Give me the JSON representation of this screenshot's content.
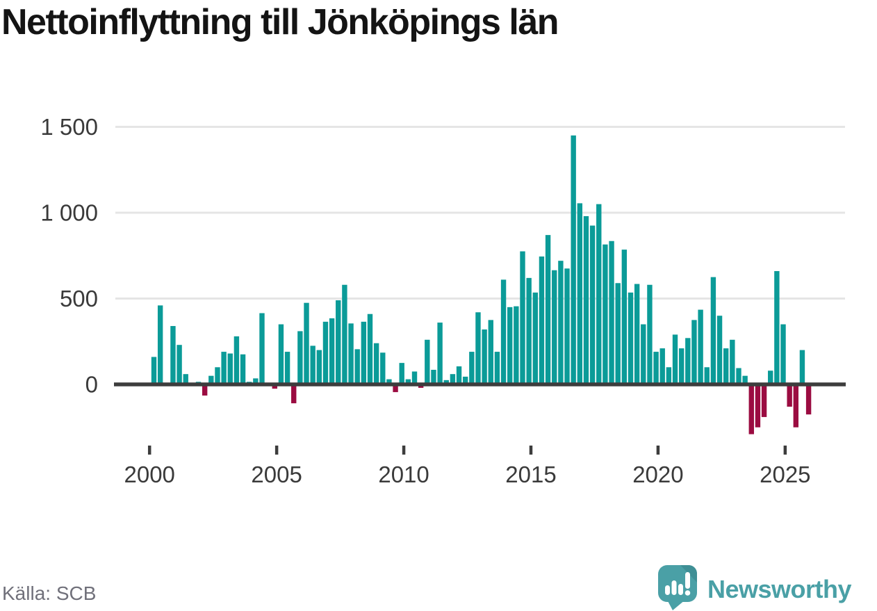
{
  "title": "Nettoinflyttning till Jönköpings län",
  "source_label": "Källa: SCB",
  "logo": {
    "wordmark": "Newsworthy",
    "icon": "speech-bubble-bar-chart-exclamation"
  },
  "colors": {
    "positive_bar": "#0b9b98",
    "negative_bar": "#9b0c41",
    "gridline": "#e5e5e5",
    "axis_line": "#3d3d3d",
    "tick_text": "#3a3a3a",
    "title_text": "#141414",
    "source_text": "#70707a",
    "logo_teal": "#4aa0a6",
    "logo_teal_dark": "#3f8f95"
  },
  "chart_data": {
    "type": "bar",
    "title": "Nettoinflyttning till Jönköpings län",
    "source": "Källa: SCB",
    "frequency": "quarterly",
    "grid": true,
    "legend_position": "none",
    "xlabel": "",
    "ylabel": "",
    "ylim": [
      -330,
      1560
    ],
    "yticks": [
      0,
      500,
      1000,
      1500
    ],
    "ytick_labels": [
      "0",
      "500",
      "1 000",
      "1 500"
    ],
    "xticks": [
      2000,
      2005,
      2010,
      2015,
      2020,
      2025
    ],
    "xtick_labels": [
      "2000",
      "2005",
      "2010",
      "2015",
      "2020",
      "2025"
    ],
    "categories": [
      "2000 Q1",
      "2000 Q2",
      "2000 Q3",
      "2000 Q4",
      "2001 Q1",
      "2001 Q2",
      "2001 Q3",
      "2001 Q4",
      "2002 Q1",
      "2002 Q2",
      "2002 Q3",
      "2002 Q4",
      "2003 Q1",
      "2003 Q2",
      "2003 Q3",
      "2003 Q4",
      "2004 Q1",
      "2004 Q2",
      "2004 Q3",
      "2004 Q4",
      "2005 Q1",
      "2005 Q2",
      "2005 Q3",
      "2005 Q4",
      "2006 Q1",
      "2006 Q2",
      "2006 Q3",
      "2006 Q4",
      "2007 Q1",
      "2007 Q2",
      "2007 Q3",
      "2007 Q4",
      "2008 Q1",
      "2008 Q2",
      "2008 Q3",
      "2008 Q4",
      "2009 Q1",
      "2009 Q2",
      "2009 Q3",
      "2009 Q4",
      "2010 Q1",
      "2010 Q2",
      "2010 Q3",
      "2010 Q4",
      "2011 Q1",
      "2011 Q2",
      "2011 Q3",
      "2011 Q4",
      "2012 Q1",
      "2012 Q2",
      "2012 Q3",
      "2012 Q4",
      "2013 Q1",
      "2013 Q2",
      "2013 Q3",
      "2013 Q4",
      "2014 Q1",
      "2014 Q2",
      "2014 Q3",
      "2014 Q4",
      "2015 Q1",
      "2015 Q2",
      "2015 Q3",
      "2015 Q4",
      "2016 Q1",
      "2016 Q2",
      "2016 Q3",
      "2016 Q4",
      "2017 Q1",
      "2017 Q2",
      "2017 Q3",
      "2017 Q4",
      "2018 Q1",
      "2018 Q2",
      "2018 Q3",
      "2018 Q4",
      "2019 Q1",
      "2019 Q2",
      "2019 Q3",
      "2019 Q4",
      "2020 Q1",
      "2020 Q2",
      "2020 Q3",
      "2020 Q4",
      "2021 Q1",
      "2021 Q2",
      "2021 Q3",
      "2021 Q4",
      "2022 Q1",
      "2022 Q2",
      "2022 Q3",
      "2022 Q4",
      "2023 Q1",
      "2023 Q2",
      "2023 Q3",
      "2023 Q4",
      "2024 Q1",
      "2024 Q2",
      "2024 Q3",
      "2024 Q4",
      "2025 Q1",
      "2025 Q2",
      "2025 Q3",
      "2025 Q4"
    ],
    "values": [
      160,
      460,
      5,
      340,
      230,
      60,
      5,
      15,
      -65,
      50,
      100,
      190,
      180,
      280,
      175,
      15,
      35,
      415,
      -10,
      -25,
      350,
      190,
      -110,
      310,
      475,
      225,
      200,
      365,
      385,
      490,
      580,
      355,
      205,
      365,
      410,
      240,
      185,
      30,
      -45,
      125,
      30,
      75,
      -20,
      260,
      85,
      360,
      25,
      60,
      105,
      45,
      190,
      420,
      320,
      375,
      190,
      610,
      450,
      455,
      775,
      620,
      535,
      745,
      870,
      665,
      720,
      675,
      1450,
      1055,
      980,
      925,
      1050,
      815,
      835,
      590,
      785,
      535,
      585,
      350,
      580,
      190,
      210,
      100,
      290,
      210,
      270,
      375,
      435,
      100,
      625,
      400,
      210,
      260,
      95,
      50,
      -290,
      -250,
      -190,
      80,
      660,
      350,
      -130,
      -250,
      200,
      -175
    ]
  }
}
